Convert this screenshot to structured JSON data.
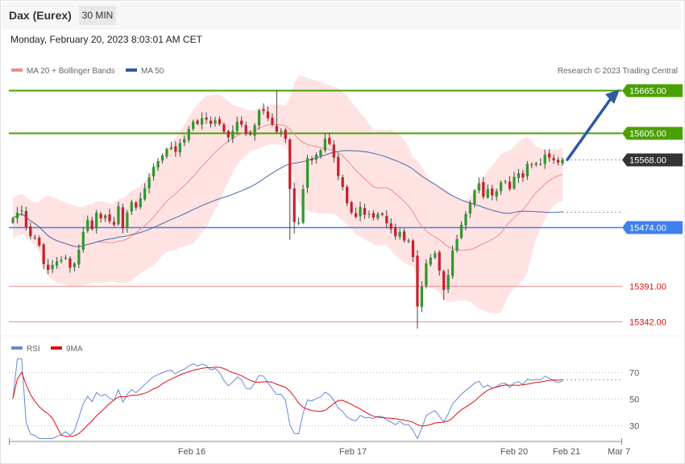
{
  "header": {
    "title": "Dax (Eurex)",
    "timeframe": "30 MIN"
  },
  "timestamp": "Monday, February 20, 2023 8:03:01 AM CET",
  "legend": {
    "ma20": "MA 20 + Bollinger Bands",
    "ma50": "MA 50",
    "credit": "Research © 2023 Trading Central"
  },
  "rsi_legend": {
    "rsi": "RSI",
    "ma9": "9MA"
  },
  "colors": {
    "up": "#2e9a2e",
    "down": "#cc1f2e",
    "band": "#ffdcdc",
    "ma20": "#f08c8c",
    "ma50": "#4a6aa8",
    "resistance": "#4aa000",
    "pivot": "#3f7fef",
    "support": "#f0a0a0",
    "arrow": "#2d5aa0",
    "rsi": "#6688dd",
    "rsi_ma": "#e01010"
  },
  "chart_data": [
    {
      "type": "candlestick",
      "symbol": "Dax (Eurex)",
      "interval": "30 MIN",
      "y_range": [
        15320,
        15700
      ],
      "x_tick_labels": [
        "Feb 16",
        "Feb 17",
        "Feb 20",
        "Feb 21",
        "Mar 7"
      ],
      "levels": [
        {
          "value": 15665.0,
          "label": "15665.00",
          "kind": "resistance"
        },
        {
          "value": 15605.0,
          "label": "15605.00",
          "kind": "resistance"
        },
        {
          "value": 15568.0,
          "label": "15568.00",
          "kind": "last"
        },
        {
          "value": 15474.0,
          "label": "15474.00",
          "kind": "pivot"
        },
        {
          "value": 15391.0,
          "label": "15391.00",
          "kind": "support"
        },
        {
          "value": 15342.0,
          "label": "15342.00",
          "kind": "support"
        }
      ],
      "close_approx": [
        15486,
        15494,
        15497,
        15474,
        15461,
        15459,
        15448,
        15422,
        15414,
        15421,
        15426,
        15428,
        15431,
        15417,
        15423,
        15442,
        15467,
        15484,
        15471,
        15494,
        15486,
        15490,
        15482,
        15477,
        15503,
        15472,
        15494,
        15509,
        15501,
        15514,
        15528,
        15543,
        15558,
        15566,
        15574,
        15583,
        15585,
        15579,
        15591,
        15597,
        15611,
        15621,
        15618,
        15626,
        15624,
        15618,
        15623,
        15618,
        15607,
        15599,
        15608,
        15621,
        15617,
        15604,
        15603,
        15616,
        15637,
        15636,
        15626,
        15617,
        15607,
        15608,
        15597,
        15527,
        15481,
        15480,
        15527,
        15570,
        15567,
        15575,
        15581,
        15597,
        15590,
        15571,
        15545,
        15530,
        15507,
        15494,
        15488,
        15502,
        15491,
        15492,
        15487,
        15492,
        15491,
        15479,
        15471,
        15461,
        15467,
        15455,
        15455,
        15432,
        15363,
        15391,
        15423,
        15431,
        15437,
        15413,
        15386,
        15407,
        15441,
        15457,
        15477,
        15492,
        15508,
        15525,
        15535,
        15516,
        15527,
        15518,
        15524,
        15536,
        15538,
        15527,
        15544,
        15549,
        15543,
        15562,
        15560,
        15563,
        15562,
        15575,
        15571,
        15567,
        15564,
        15568
      ]
    },
    {
      "type": "line",
      "name": "RSI",
      "y_ticks": [
        70,
        50,
        30
      ],
      "y_range": [
        15,
        80
      ]
    }
  ]
}
